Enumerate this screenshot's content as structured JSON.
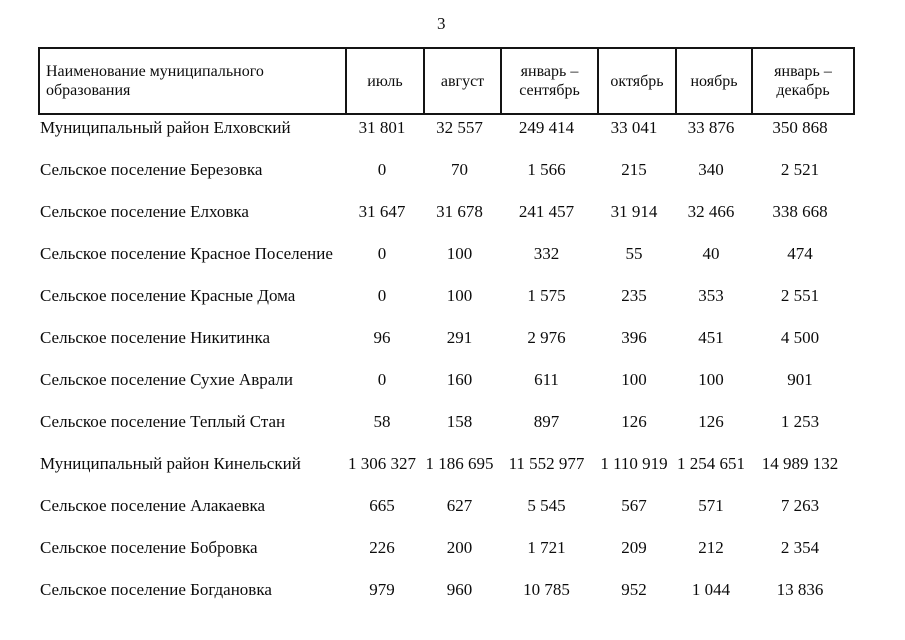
{
  "page": {
    "number": "3"
  },
  "table": {
    "columns": [
      {
        "key": "name",
        "label": "Наименование муниципального образования"
      },
      {
        "key": "jul",
        "label": "июль"
      },
      {
        "key": "aug",
        "label": "август"
      },
      {
        "key": "jan-sep",
        "label": "январь –\nсентябрь"
      },
      {
        "key": "oct",
        "label": "октябрь"
      },
      {
        "key": "nov",
        "label": "ноябрь"
      },
      {
        "key": "jan-dec",
        "label": "январь –\nдекабрь"
      }
    ],
    "rows": [
      {
        "name": "Муниципальный район Елховский",
        "values": [
          "31 801",
          "32 557",
          "249 414",
          "33 041",
          "33 876",
          "350 868"
        ]
      },
      {
        "name": "Сельское поселение Березовка",
        "values": [
          "0",
          "70",
          "1 566",
          "215",
          "340",
          "2 521"
        ]
      },
      {
        "name": "Сельское поселение Елховка",
        "values": [
          "31 647",
          "31 678",
          "241 457",
          "31 914",
          "32 466",
          "338 668"
        ]
      },
      {
        "name": "Сельское поселение Красное Поселение",
        "values": [
          "0",
          "100",
          "332",
          "55",
          "40",
          "474"
        ]
      },
      {
        "name": "Сельское поселение Красные Дома",
        "values": [
          "0",
          "100",
          "1 575",
          "235",
          "353",
          "2 551"
        ]
      },
      {
        "name": "Сельское поселение Никитинка",
        "values": [
          "96",
          "291",
          "2 976",
          "396",
          "451",
          "4 500"
        ]
      },
      {
        "name": "Сельское поселение Сухие Аврали",
        "values": [
          "0",
          "160",
          "611",
          "100",
          "100",
          "901"
        ]
      },
      {
        "name": "Сельское поселение Теплый Стан",
        "values": [
          "58",
          "158",
          "897",
          "126",
          "126",
          "1 253"
        ]
      },
      {
        "name": "Муниципальный район Кинельский",
        "values": [
          "1 306 327",
          "1 186 695",
          "11 552 977",
          "1 110 919",
          "1 254 651",
          "14 989 132"
        ]
      },
      {
        "name": "Сельское поселение Алакаевка",
        "values": [
          "665",
          "627",
          "5 545",
          "567",
          "571",
          "7 263"
        ]
      },
      {
        "name": "Сельское поселение Бобровка",
        "values": [
          "226",
          "200",
          "1 721",
          "209",
          "212",
          "2 354"
        ]
      },
      {
        "name": "Сельское поселение Богдановка",
        "values": [
          "979",
          "960",
          "10 785",
          "952",
          "1 044",
          "13 836"
        ]
      }
    ]
  }
}
